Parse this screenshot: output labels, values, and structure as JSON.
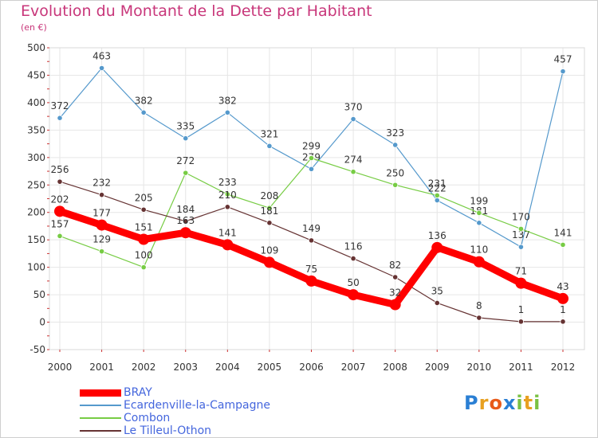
{
  "title": "Evolution du Montant de la Dette par Habitant",
  "subtitle": "(en €)",
  "logo": {
    "letters": [
      {
        "ch": "P",
        "color": "#2a7fd4"
      },
      {
        "ch": "r",
        "color": "#e8a020"
      },
      {
        "ch": "o",
        "color": "#e85a1a"
      },
      {
        "ch": "x",
        "color": "#2a7fd4"
      },
      {
        "ch": "i",
        "color": "#7ac143"
      },
      {
        "ch": "t",
        "color": "#e8a020"
      },
      {
        "ch": "i",
        "color": "#7ac143"
      }
    ]
  },
  "chart_data": {
    "type": "line",
    "x": [
      "2000",
      "2001",
      "2002",
      "2003",
      "2004",
      "2005",
      "2006",
      "2007",
      "2008",
      "2009",
      "2010",
      "2011",
      "2012"
    ],
    "ylim": [
      -50,
      500
    ],
    "yticks": [
      -50,
      0,
      50,
      100,
      150,
      200,
      250,
      300,
      350,
      400,
      450,
      500
    ],
    "grid": true,
    "legend_position": "bottom-left",
    "series": [
      {
        "name": "BRAY",
        "color": "#ff0000",
        "emphasis": true,
        "values": [
          202,
          177,
          151,
          163,
          141,
          109,
          75,
          50,
          32,
          136,
          110,
          71,
          43
        ]
      },
      {
        "name": "Ecardenville-la-Campagne",
        "color": "#5599cc",
        "emphasis": false,
        "values": [
          372,
          463,
          382,
          335,
          382,
          321,
          279,
          370,
          323,
          222,
          181,
          137,
          457
        ]
      },
      {
        "name": "Combon",
        "color": "#77cc44",
        "emphasis": false,
        "values": [
          157,
          129,
          100,
          272,
          233,
          208,
          299,
          274,
          250,
          231,
          199,
          170,
          141
        ]
      },
      {
        "name": "Le Tilleul-Othon",
        "color": "#663333",
        "emphasis": false,
        "values": [
          256,
          232,
          205,
          184,
          210,
          181,
          149,
          116,
          82,
          35,
          8,
          1,
          1
        ]
      }
    ]
  }
}
